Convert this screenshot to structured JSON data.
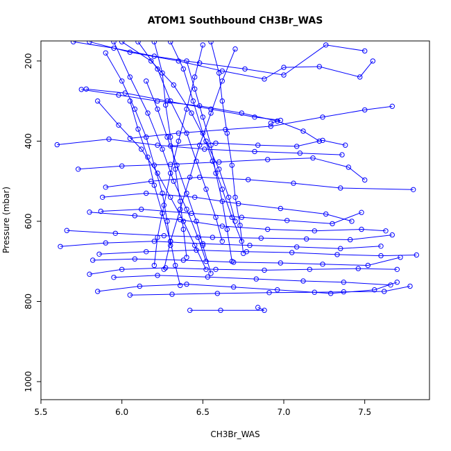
{
  "chart_data": {
    "type": "line",
    "title": "ATOM1 Southbound CH3Br_WAS",
    "xlabel": "CH3Br_WAS",
    "ylabel": "Pressure (mbar)",
    "xlim": [
      5.5,
      7.9
    ],
    "ylim": [
      1045,
      150
    ],
    "y_reversed": true,
    "x_ticks": [
      5.5,
      6.0,
      6.5,
      7.0,
      7.5
    ],
    "x_tick_labels": [
      "5.5",
      "6.0",
      "6.5",
      "7.0",
      "7.5"
    ],
    "y_ticks": [
      200,
      400,
      600,
      800,
      1000
    ],
    "y_tick_labels": [
      "200",
      "400",
      "600",
      "800",
      "1000"
    ],
    "grid": false,
    "legend": "none",
    "marker": "open-circle",
    "series_color": "#0000ff",
    "series": [
      {
        "points": [
          [
            6.42,
            822
          ],
          [
            6.61,
            822
          ],
          [
            6.88,
            822
          ],
          [
            6.84,
            815
          ]
        ]
      },
      {
        "points": [
          [
            6.05,
            784
          ],
          [
            6.31,
            782
          ],
          [
            6.59,
            780
          ],
          [
            6.91,
            778
          ],
          [
            7.19,
            777
          ],
          [
            7.37,
            776
          ],
          [
            7.62,
            775
          ],
          [
            7.78,
            762
          ]
        ]
      },
      {
        "points": [
          [
            5.85,
            775
          ],
          [
            6.11,
            762
          ],
          [
            6.4,
            757
          ],
          [
            6.69,
            764
          ],
          [
            6.96,
            771
          ],
          [
            7.29,
            780
          ],
          [
            7.56,
            771
          ],
          [
            7.7,
            752
          ]
        ]
      },
      {
        "points": [
          [
            5.95,
            740
          ],
          [
            6.22,
            735
          ],
          [
            6.53,
            739
          ],
          [
            6.83,
            744
          ],
          [
            7.12,
            749
          ],
          [
            7.37,
            752
          ],
          [
            7.66,
            759
          ]
        ]
      },
      {
        "points": [
          [
            5.8,
            732
          ],
          [
            6.0,
            720
          ],
          [
            6.27,
            716
          ],
          [
            6.58,
            720
          ],
          [
            6.88,
            722
          ],
          [
            7.16,
            720
          ],
          [
            7.46,
            718
          ],
          [
            7.7,
            720
          ]
        ]
      },
      {
        "points": [
          [
            5.82,
            697
          ],
          [
            6.08,
            694
          ],
          [
            6.38,
            697
          ],
          [
            6.69,
            702
          ],
          [
            6.98,
            704
          ],
          [
            7.24,
            707
          ],
          [
            7.52,
            710
          ],
          [
            7.72,
            690
          ]
        ]
      },
      {
        "points": [
          [
            5.86,
            682
          ],
          [
            6.15,
            676
          ],
          [
            6.46,
            672
          ],
          [
            6.77,
            676
          ],
          [
            7.05,
            678
          ],
          [
            7.33,
            683
          ],
          [
            7.6,
            686
          ],
          [
            7.82,
            684
          ]
        ]
      },
      {
        "points": [
          [
            5.62,
            663
          ],
          [
            5.9,
            654
          ],
          [
            6.2,
            650
          ],
          [
            6.5,
            656
          ],
          [
            6.79,
            660
          ],
          [
            7.08,
            664
          ],
          [
            7.35,
            668
          ],
          [
            7.6,
            662
          ]
        ]
      },
      {
        "points": [
          [
            5.66,
            623
          ],
          [
            5.96,
            630
          ],
          [
            6.26,
            636
          ],
          [
            6.56,
            640
          ],
          [
            6.86,
            642
          ],
          [
            7.14,
            644
          ],
          [
            7.41,
            646
          ],
          [
            7.67,
            634
          ]
        ]
      },
      {
        "points": [
          [
            5.8,
            577
          ],
          [
            6.08,
            586
          ],
          [
            6.36,
            596
          ],
          [
            6.62,
            612
          ],
          [
            6.9,
            620
          ],
          [
            7.19,
            624
          ],
          [
            7.48,
            620
          ],
          [
            7.63,
            624
          ]
        ]
      },
      {
        "points": [
          [
            5.87,
            575
          ],
          [
            6.12,
            570
          ],
          [
            6.43,
            580
          ],
          [
            6.74,
            590
          ],
          [
            7.02,
            598
          ],
          [
            7.3,
            606
          ],
          [
            7.48,
            578
          ]
        ]
      },
      {
        "points": [
          [
            5.88,
            540
          ],
          [
            6.15,
            530
          ],
          [
            6.45,
            540
          ],
          [
            6.72,
            556
          ],
          [
            6.98,
            568
          ],
          [
            7.26,
            582
          ],
          [
            7.42,
            600
          ]
        ]
      },
      {
        "points": [
          [
            5.9,
            515
          ],
          [
            6.18,
            500
          ],
          [
            6.48,
            490
          ],
          [
            6.78,
            496
          ],
          [
            7.06,
            505
          ],
          [
            7.35,
            517
          ],
          [
            7.8,
            521
          ]
        ]
      },
      {
        "points": [
          [
            5.73,
            470
          ],
          [
            6.0,
            462
          ],
          [
            6.3,
            458
          ],
          [
            6.6,
            452
          ],
          [
            6.9,
            446
          ],
          [
            7.18,
            442
          ],
          [
            7.4,
            465
          ],
          [
            7.5,
            497
          ]
        ]
      },
      {
        "points": [
          [
            5.6,
            409
          ],
          [
            5.92,
            395
          ],
          [
            6.22,
            410
          ],
          [
            6.51,
            420
          ],
          [
            6.82,
            426
          ],
          [
            7.1,
            430
          ],
          [
            7.36,
            434
          ]
        ]
      },
      {
        "points": [
          [
            6.3,
            412
          ],
          [
            6.58,
            405
          ],
          [
            6.84,
            410
          ],
          [
            7.08,
            413
          ],
          [
            7.24,
            398
          ],
          [
            7.38,
            410
          ]
        ]
      },
      {
        "points": [
          [
            6.05,
            393
          ],
          [
            6.35,
            380
          ],
          [
            6.64,
            371
          ],
          [
            6.92,
            363
          ],
          [
            7.24,
            340
          ],
          [
            7.5,
            322
          ],
          [
            7.67,
            313
          ]
        ]
      },
      {
        "points": [
          [
            5.75,
            271
          ],
          [
            5.98,
            285
          ],
          [
            6.22,
            300
          ],
          [
            6.48,
            312
          ],
          [
            6.74,
            330
          ],
          [
            6.96,
            350
          ],
          [
            7.12,
            375
          ],
          [
            7.22,
            400
          ]
        ]
      },
      {
        "points": [
          [
            5.8,
            152
          ],
          [
            6.05,
            178
          ],
          [
            6.35,
            200
          ],
          [
            6.62,
            225
          ],
          [
            6.88,
            245
          ],
          [
            7.0,
            216
          ],
          [
            7.22,
            214
          ],
          [
            7.47,
            240
          ],
          [
            7.55,
            200
          ]
        ]
      },
      {
        "points": [
          [
            5.7,
            152
          ],
          [
            5.95,
            168
          ],
          [
            6.2,
            188
          ],
          [
            6.48,
            205
          ],
          [
            6.76,
            220
          ],
          [
            7.0,
            235
          ],
          [
            7.26,
            160
          ],
          [
            7.5,
            175
          ]
        ]
      },
      {
        "points": [
          [
            5.78,
            270
          ],
          [
            6.02,
            280
          ],
          [
            6.28,
            300
          ],
          [
            6.55,
            320
          ],
          [
            6.82,
            340
          ],
          [
            6.98,
            348
          ],
          [
            6.92,
            355
          ]
        ]
      },
      {
        "points": [
          [
            6.0,
            152
          ],
          [
            6.18,
            200
          ],
          [
            6.32,
            260
          ],
          [
            6.43,
            330
          ],
          [
            6.52,
            400
          ],
          [
            6.6,
            470
          ],
          [
            6.66,
            540
          ],
          [
            6.7,
            600
          ]
        ]
      },
      {
        "points": [
          [
            6.1,
            152
          ],
          [
            6.22,
            220
          ],
          [
            6.3,
            300
          ],
          [
            6.4,
            380
          ],
          [
            6.46,
            450
          ],
          [
            6.52,
            520
          ],
          [
            6.58,
            590
          ],
          [
            6.62,
            650
          ]
        ]
      },
      {
        "points": [
          [
            5.95,
            152
          ],
          [
            6.05,
            240
          ],
          [
            6.16,
            330
          ],
          [
            6.25,
            420
          ],
          [
            6.32,
            500
          ],
          [
            6.4,
            570
          ],
          [
            6.47,
            640
          ],
          [
            6.52,
            700
          ]
        ]
      },
      {
        "points": [
          [
            6.3,
            152
          ],
          [
            6.38,
            220
          ],
          [
            6.44,
            300
          ],
          [
            6.5,
            380
          ],
          [
            6.56,
            450
          ],
          [
            6.62,
            520
          ],
          [
            6.68,
            590
          ],
          [
            6.74,
            650
          ]
        ]
      },
      {
        "points": [
          [
            5.85,
            300
          ],
          [
            5.98,
            360
          ],
          [
            6.12,
            420
          ],
          [
            6.22,
            480
          ],
          [
            6.3,
            540
          ],
          [
            6.38,
            600
          ],
          [
            6.45,
            660
          ],
          [
            6.52,
            720
          ]
        ]
      },
      {
        "points": [
          [
            6.2,
            152
          ],
          [
            6.25,
            230
          ],
          [
            6.27,
            310
          ],
          [
            6.3,
            390
          ],
          [
            6.33,
            470
          ],
          [
            6.36,
            550
          ],
          [
            6.38,
            620
          ],
          [
            6.4,
            690
          ]
        ]
      },
      {
        "points": [
          [
            6.55,
            152
          ],
          [
            6.6,
            230
          ],
          [
            6.62,
            300
          ],
          [
            6.65,
            380
          ],
          [
            6.68,
            460
          ],
          [
            6.7,
            540
          ],
          [
            6.73,
            610
          ],
          [
            6.75,
            680
          ]
        ]
      },
      {
        "points": [
          [
            6.05,
            300
          ],
          [
            6.1,
            370
          ],
          [
            6.16,
            440
          ],
          [
            6.2,
            510
          ],
          [
            6.25,
            580
          ],
          [
            6.3,
            650
          ],
          [
            6.33,
            710
          ],
          [
            6.36,
            760
          ]
        ]
      },
      {
        "points": [
          [
            5.9,
            180
          ],
          [
            6.0,
            250
          ],
          [
            6.08,
            320
          ],
          [
            6.15,
            390
          ],
          [
            6.2,
            460
          ],
          [
            6.25,
            530
          ],
          [
            6.28,
            600
          ],
          [
            6.3,
            660
          ]
        ]
      },
      {
        "points": [
          [
            6.4,
            200
          ],
          [
            6.45,
            270
          ],
          [
            6.5,
            340
          ],
          [
            6.55,
            410
          ],
          [
            6.58,
            480
          ],
          [
            6.62,
            550
          ],
          [
            6.65,
            620
          ],
          [
            6.68,
            700
          ]
        ]
      },
      {
        "points": [
          [
            6.15,
            250
          ],
          [
            6.22,
            320
          ],
          [
            6.28,
            390
          ],
          [
            6.34,
            460
          ],
          [
            6.4,
            530
          ],
          [
            6.46,
            600
          ],
          [
            6.5,
            660
          ],
          [
            6.55,
            730
          ]
        ]
      },
      {
        "points": [
          [
            6.5,
            160
          ],
          [
            6.45,
            240
          ],
          [
            6.4,
            320
          ],
          [
            6.35,
            400
          ],
          [
            6.3,
            480
          ],
          [
            6.26,
            560
          ],
          [
            6.22,
            640
          ],
          [
            6.2,
            710
          ]
        ]
      },
      {
        "points": [
          [
            6.7,
            170
          ],
          [
            6.62,
            250
          ],
          [
            6.55,
            330
          ],
          [
            6.48,
            410
          ],
          [
            6.42,
            490
          ],
          [
            6.36,
            570
          ],
          [
            6.3,
            650
          ],
          [
            6.26,
            720
          ]
        ]
      }
    ]
  }
}
